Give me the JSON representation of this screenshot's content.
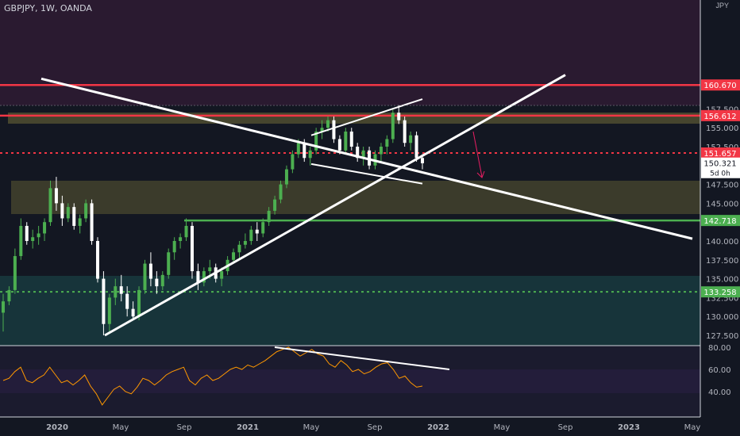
{
  "header": {
    "symbol": "GBPJPY, 1W, OANDA",
    "currency": "JPY"
  },
  "colors": {
    "background": "#131722",
    "up": "#26a69a",
    "up_body": "#4caf50",
    "down": "#ffffff",
    "resistance": "#f23645",
    "support": "#4caf50",
    "zone": "#5c5a33",
    "trendline": "#ffffff",
    "rsi": "#ff9800",
    "price_label": "#ffffff"
  },
  "chart_data": [
    {
      "type": "candlestick",
      "title": "GBPJPY, 1W, OANDA",
      "x_ticks": [
        "2020",
        "May",
        "Sep",
        "2021",
        "May",
        "Sep",
        "2022",
        "May",
        "Sep",
        "2023",
        "May"
      ],
      "y_ticks": [
        "127.500",
        "130.000",
        "132.500",
        "135.000",
        "137.500",
        "140.000",
        "142.500",
        "145.000",
        "147.500",
        "152.500",
        "155.000",
        "157.500"
      ],
      "ylim": [
        126.0,
        161.0
      ],
      "price_labels": [
        {
          "value": "160.670",
          "color": "#f23645"
        },
        {
          "value": "156.612",
          "color": "#f23645"
        },
        {
          "value": "151.657",
          "color": "#f23645"
        },
        {
          "value": "150.321",
          "color": "#ffffff",
          "sub": "5d 0h"
        },
        {
          "value": "142.718",
          "color": "#4caf50"
        },
        {
          "value": "133.258",
          "color": "#4caf50"
        }
      ],
      "horizontal_levels": [
        {
          "value": 160.67,
          "style": "solid",
          "color": "#f23645"
        },
        {
          "value": 156.612,
          "style": "solid",
          "color": "#f23645"
        },
        {
          "value": 151.657,
          "style": "dotted",
          "color": "#f23645"
        },
        {
          "value": 142.718,
          "style": "solid",
          "color": "#4caf50",
          "from": "2020-09"
        },
        {
          "value": 133.258,
          "style": "dotted",
          "color": "#4caf50"
        }
      ],
      "zones": [
        {
          "from": 148.8,
          "to": 150.2
        },
        {
          "from": 139.4,
          "to": 142.9
        }
      ],
      "candles": [
        [
          130.5,
          133,
          128,
          132
        ],
        [
          132,
          134,
          131.5,
          133.5
        ],
        [
          133.5,
          139,
          133,
          138
        ],
        [
          138,
          143,
          137.5,
          142
        ],
        [
          142,
          142.5,
          139.5,
          140
        ],
        [
          140,
          141.5,
          139,
          140.5
        ],
        [
          140.5,
          142,
          139.5,
          141
        ],
        [
          141,
          143,
          140,
          142.5
        ],
        [
          142.5,
          148,
          142,
          147
        ],
        [
          147,
          148.5,
          144,
          145
        ],
        [
          145,
          146,
          142,
          143
        ],
        [
          143,
          145,
          142.5,
          144.5
        ],
        [
          144.5,
          145,
          141.5,
          142
        ],
        [
          142,
          143.5,
          141,
          143
        ],
        [
          143,
          145.5,
          142.5,
          145
        ],
        [
          145,
          145.5,
          139.5,
          140
        ],
        [
          140,
          140.5,
          134.5,
          135
        ],
        [
          135,
          136,
          127.5,
          129
        ],
        [
          129,
          133,
          128,
          132.5
        ],
        [
          132.5,
          135,
          131.5,
          134
        ],
        [
          134,
          135.5,
          132,
          133
        ],
        [
          133,
          134,
          130,
          131
        ],
        [
          131,
          132,
          129.5,
          130
        ],
        [
          130,
          134,
          129.5,
          133.5
        ],
        [
          133.5,
          137.5,
          133,
          137
        ],
        [
          137,
          138.5,
          134,
          135
        ],
        [
          135,
          136,
          133,
          134
        ],
        [
          134,
          136,
          133.5,
          135.5
        ],
        [
          135.5,
          139,
          135,
          138.5
        ],
        [
          138.5,
          140.5,
          137.5,
          140
        ],
        [
          140,
          141,
          139,
          140.5
        ],
        [
          140.5,
          143,
          140,
          142
        ],
        [
          142,
          142.5,
          135,
          136
        ],
        [
          136,
          137,
          133.5,
          134.5
        ],
        [
          134.5,
          136.5,
          134,
          136
        ],
        [
          136,
          137.5,
          135,
          136.5
        ],
        [
          136.5,
          137,
          134.5,
          135
        ],
        [
          135,
          136.5,
          134,
          136
        ],
        [
          136,
          138,
          135.5,
          137.5
        ],
        [
          137.5,
          139,
          137,
          138.5
        ],
        [
          138.5,
          140,
          137.5,
          139.5
        ],
        [
          139.5,
          141,
          139,
          140
        ],
        [
          140,
          142,
          139.5,
          141.5
        ],
        [
          141.5,
          142.5,
          140,
          141
        ],
        [
          141,
          143,
          140.5,
          142.5
        ],
        [
          142.5,
          144.5,
          142,
          144
        ],
        [
          144,
          146,
          143.5,
          145.5
        ],
        [
          145.5,
          148,
          145,
          147.5
        ],
        [
          147.5,
          150,
          147,
          149.5
        ],
        [
          149.5,
          152,
          149,
          151.5
        ],
        [
          151.5,
          153.5,
          151,
          153
        ],
        [
          153,
          153.5,
          150.5,
          151
        ],
        [
          151,
          152.5,
          150,
          152
        ],
        [
          152,
          155,
          151.5,
          154.5
        ],
        [
          154.5,
          156,
          153.5,
          155
        ],
        [
          155,
          156.5,
          154.5,
          156
        ],
        [
          156,
          156.5,
          153,
          153.5
        ],
        [
          153.5,
          154,
          151.5,
          152
        ],
        [
          152,
          155,
          151.5,
          154.5
        ],
        [
          154.5,
          155,
          152,
          152.5
        ],
        [
          152.5,
          153,
          150.5,
          151
        ],
        [
          151,
          152.5,
          150,
          152
        ],
        [
          152,
          152.5,
          149.5,
          150
        ],
        [
          150,
          152,
          149.5,
          151.5
        ],
        [
          151.5,
          153,
          150.5,
          152.5
        ],
        [
          152.5,
          154,
          151.5,
          153.5
        ],
        [
          153.5,
          157.5,
          153,
          157
        ],
        [
          157,
          158,
          155.5,
          156
        ],
        [
          156,
          156.5,
          152.5,
          153
        ],
        [
          153,
          154.5,
          152,
          154
        ],
        [
          154,
          154.5,
          150.5,
          151
        ],
        [
          151,
          151.5,
          149.5,
          150.3
        ]
      ],
      "trendlines": [
        {
          "from": [
            "2019-12",
            161.5
          ],
          "to": [
            "2023-05",
            140.3
          ]
        },
        {
          "from": [
            "2020-04",
            127.5
          ],
          "to": [
            "2022-09",
            162.0
          ]
        },
        {
          "from": [
            "2021-05",
            154.0
          ],
          "to": [
            "2021-12",
            158.8
          ]
        },
        {
          "from": [
            "2021-05",
            150.2
          ],
          "to": [
            "2021-12",
            147.6
          ]
        }
      ]
    },
    {
      "type": "line",
      "title": "RSI",
      "y_ticks": [
        "40.00",
        "60.00",
        "80.00"
      ],
      "ylim": [
        20,
        82
      ],
      "series": [
        {
          "values": [
            50,
            52,
            58,
            62,
            50,
            48,
            52,
            55,
            62,
            55,
            48,
            50,
            46,
            50,
            55,
            45,
            38,
            28,
            35,
            42,
            45,
            40,
            38,
            44,
            52,
            50,
            46,
            50,
            55,
            58,
            60,
            62,
            50,
            46,
            52,
            55,
            50,
            52,
            56,
            60,
            62,
            60,
            64,
            62,
            65,
            68,
            72,
            76,
            78,
            80,
            76,
            72,
            75,
            78,
            74,
            72,
            65,
            62,
            68,
            64,
            58,
            60,
            56,
            58,
            62,
            65,
            66,
            60,
            52,
            54,
            48,
            44,
            45
          ]
        }
      ],
      "trendline": {
        "from": 80,
        "to": 60
      }
    }
  ]
}
